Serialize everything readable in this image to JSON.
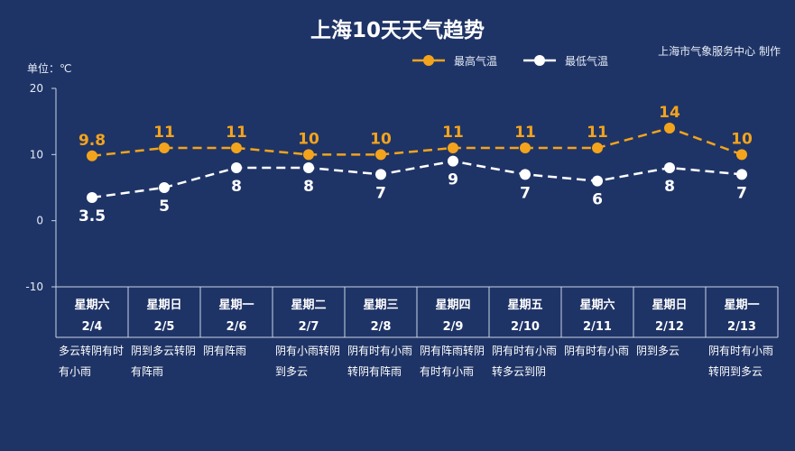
{
  "title": "上海10天天气趋势",
  "credit": "上海市气象服务中心 制作",
  "unit_label": "单位：℃",
  "colors": {
    "background": "#1f3466",
    "high": "#f3a41c",
    "low": "#ffffff",
    "axis": "#c9d3e8"
  },
  "chart_data": {
    "type": "line",
    "title": "上海10天天气趋势",
    "ylabel": "单位：℃",
    "ylim": [
      -10,
      20
    ],
    "yticks": [
      20,
      10,
      0,
      -10
    ],
    "grid": false,
    "legend_position": "top",
    "categories": [
      {
        "weekday": "星期六",
        "date": "2/4",
        "condition": "多云转阴有时有小雨"
      },
      {
        "weekday": "星期日",
        "date": "2/5",
        "condition": "阴到多云转阴有阵雨"
      },
      {
        "weekday": "星期一",
        "date": "2/6",
        "condition": "阴有阵雨"
      },
      {
        "weekday": "星期二",
        "date": "2/7",
        "condition": "阴有小雨转阴到多云"
      },
      {
        "weekday": "星期三",
        "date": "2/8",
        "condition": "阴有时有小雨转阴有阵雨"
      },
      {
        "weekday": "星期四",
        "date": "2/9",
        "condition": "阴有阵雨转阴有时有小雨"
      },
      {
        "weekday": "星期五",
        "date": "2/10",
        "condition": "阴有时有小雨转多云到阴"
      },
      {
        "weekday": "星期六",
        "date": "2/11",
        "condition": "阴有时有小雨"
      },
      {
        "weekday": "星期日",
        "date": "2/12",
        "condition": "阴到多云"
      },
      {
        "weekday": "星期一",
        "date": "2/13",
        "condition": "阴有时有小雨转阴到多云"
      }
    ],
    "series": [
      {
        "name": "最高气温",
        "values": [
          9.8,
          11,
          11,
          10,
          10,
          11,
          11,
          11,
          14,
          10
        ]
      },
      {
        "name": "最低气温",
        "values": [
          3.5,
          5,
          8,
          8,
          7,
          9,
          7,
          6,
          8,
          7
        ]
      }
    ]
  }
}
